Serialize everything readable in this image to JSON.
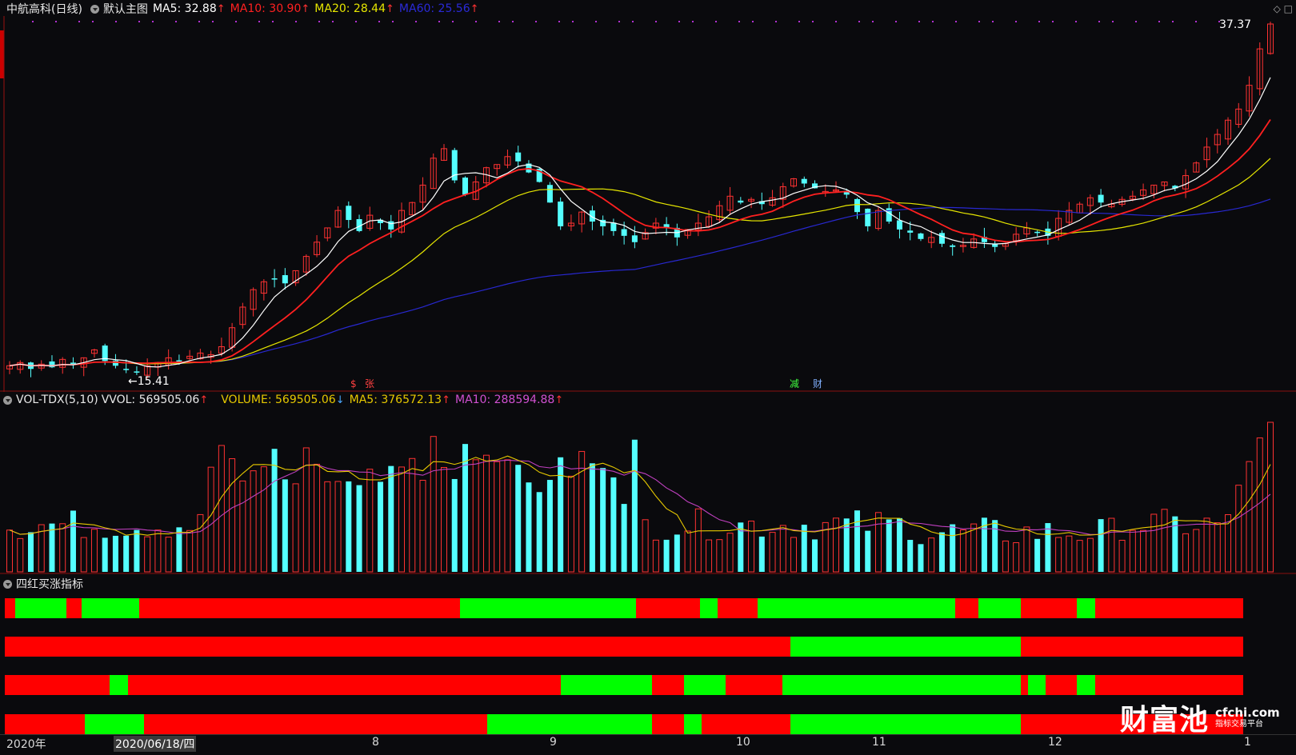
{
  "main_header": {
    "stock": "中航高科(日线)",
    "template": "默认主图",
    "ma5": "MA5: 32.88",
    "ma10": "MA10: 30.90",
    "ma20": "MA20: 28.44",
    "ma60": "MA60: 25.56",
    "up_arrow": "↑"
  },
  "price_labels": {
    "high": "37.37",
    "low": "15.41"
  },
  "markers": {
    "m1": "$",
    "m2": "张",
    "m3": "减",
    "m4": "财"
  },
  "vol_header": {
    "indicator": "VOL-TDX(5,10)",
    "vvol": "VVOL: 569505.06",
    "volume": "VOLUME: 569505.06",
    "ma5": "MA5: 376572.13",
    "ma10": "MA10: 288594.88",
    "up_arrow": "↑",
    "down_arrow": "↓"
  },
  "indicator_header": {
    "name": "四红买涨指标"
  },
  "x_axis": {
    "year": "2020年",
    "cursor_date": "2020/06/18/四",
    "months": [
      "8",
      "9",
      "10",
      "11",
      "12",
      "1"
    ]
  },
  "logo": {
    "brand": "财富池",
    "url": "cfchi.com",
    "tagline": "指标交易平台"
  },
  "colors": {
    "bg": "#0a0a0d",
    "up": "#ff3232",
    "down": "#54ffff",
    "ma5": "#ffffff",
    "ma10": "#ff2020",
    "ma20": "#e6e600",
    "ma60": "#2828d0",
    "vol_ma5": "#e6c800",
    "vol_ma10": "#c040c0",
    "band_red": "#ff0000",
    "band_green": "#00ff00"
  },
  "chart_data": {
    "type": "candlestick",
    "price_range": [
      15.41,
      37.37
    ],
    "price_path": [
      15.8,
      16.0,
      15.6,
      15.9,
      15.7,
      16.2,
      15.9,
      16.3,
      16.8,
      16.1,
      15.8,
      15.6,
      15.41,
      15.8,
      16.0,
      16.3,
      16.1,
      16.4,
      16.6,
      16.5,
      17.0,
      18.2,
      19.5,
      20.6,
      21.1,
      21.3,
      21.0,
      21.8,
      22.7,
      23.6,
      24.5,
      25.6,
      25.0,
      24.3,
      25.3,
      24.8,
      24.4,
      25.6,
      26.1,
      27.2,
      28.9,
      29.5,
      27.5,
      26.6,
      27.4,
      28.3,
      28.5,
      29.0,
      28.7,
      28.0,
      27.4,
      26.1,
      24.6,
      24.8,
      25.5,
      24.9,
      24.6,
      24.3,
      24.0,
      23.6,
      24.2,
      24.8,
      24.5,
      23.9,
      24.4,
      24.8,
      25.2,
      25.9,
      26.5,
      26.1,
      26.3,
      26.0,
      26.4,
      27.1,
      27.6,
      27.3,
      27.0,
      26.8,
      26.9,
      26.6,
      25.5,
      24.6,
      25.6,
      24.9,
      24.4,
      24.2,
      23.8,
      23.9,
      23.5,
      23.3,
      23.4,
      23.8,
      23.6,
      23.3,
      23.5,
      24.1,
      24.5,
      24.2,
      24.0,
      25.1,
      25.6,
      26.0,
      26.4,
      26.1,
      26.0,
      26.3,
      26.5,
      26.9,
      27.2,
      27.4,
      27.0,
      27.8,
      28.6,
      29.6,
      30.4,
      31.3,
      32.0,
      33.5,
      35.8,
      37.37
    ],
    "volume_range": [
      0,
      600000
    ],
    "volume_ma10_approx": 288594.88,
    "volume_last": 569505.06,
    "bands": [
      [
        [
          "r",
          0,
          13
        ],
        [
          "g",
          13,
          77
        ],
        [
          "r",
          77,
          96
        ],
        [
          "g",
          96,
          168
        ],
        [
          "r",
          168,
          569
        ],
        [
          "g",
          569,
          789
        ],
        [
          "r",
          789,
          869
        ],
        [
          "g",
          869,
          891
        ],
        [
          "r",
          891,
          941
        ],
        [
          "g",
          941,
          1188
        ],
        [
          "r",
          1188,
          1217
        ],
        [
          "g",
          1217,
          1270
        ],
        [
          "r",
          1270,
          1340
        ],
        [
          "g",
          1340,
          1363
        ],
        [
          "r",
          1363,
          1548
        ]
      ],
      [
        [
          "r",
          0,
          982
        ],
        [
          "g",
          982,
          1270
        ],
        [
          "r",
          1270,
          1548
        ]
      ],
      [
        [
          "r",
          0,
          131
        ],
        [
          "g",
          131,
          154
        ],
        [
          "r",
          154,
          695
        ],
        [
          "g",
          695,
          809
        ],
        [
          "r",
          809,
          849
        ],
        [
          "g",
          849,
          901
        ],
        [
          "r",
          901,
          972
        ],
        [
          "g",
          972,
          1270
        ],
        [
          "r",
          1270,
          1279
        ],
        [
          "g",
          1279,
          1301
        ],
        [
          "r",
          1301,
          1340
        ],
        [
          "g",
          1340,
          1363
        ],
        [
          "r",
          1363,
          1548
        ]
      ],
      [
        [
          "r",
          0,
          100
        ],
        [
          "g",
          100,
          174
        ],
        [
          "r",
          174,
          603
        ],
        [
          "g",
          603,
          809
        ],
        [
          "r",
          809,
          849
        ],
        [
          "g",
          849,
          871
        ],
        [
          "r",
          871,
          982
        ],
        [
          "g",
          982,
          1270
        ],
        [
          "r",
          1270,
          1548
        ]
      ]
    ]
  }
}
